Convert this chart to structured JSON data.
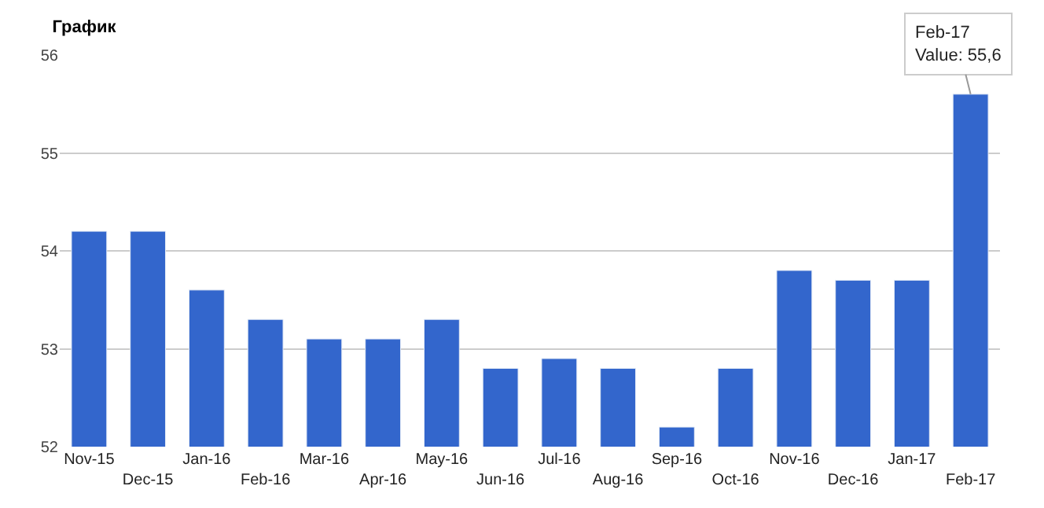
{
  "chart_data": {
    "type": "bar",
    "title": "График",
    "categories": [
      "Nov-15",
      "Dec-15",
      "Jan-16",
      "Feb-16",
      "Mar-16",
      "Apr-16",
      "May-16",
      "Jun-16",
      "Jul-16",
      "Aug-16",
      "Sep-16",
      "Oct-16",
      "Nov-16",
      "Dec-16",
      "Jan-17",
      "Feb-17"
    ],
    "values": [
      54.2,
      54.2,
      53.6,
      53.3,
      53.1,
      53.1,
      53.3,
      52.8,
      52.9,
      52.8,
      52.2,
      52.8,
      53.8,
      53.7,
      53.7,
      55.6
    ],
    "color": "#3366cc",
    "ylim": [
      52,
      56
    ],
    "yticks": [
      52,
      53,
      54,
      55,
      56
    ],
    "grid": "y",
    "annotations": [
      {
        "text": "Feb-17\nValue: 55,6",
        "x": "Feb-17",
        "y": 55.6
      }
    ]
  }
}
